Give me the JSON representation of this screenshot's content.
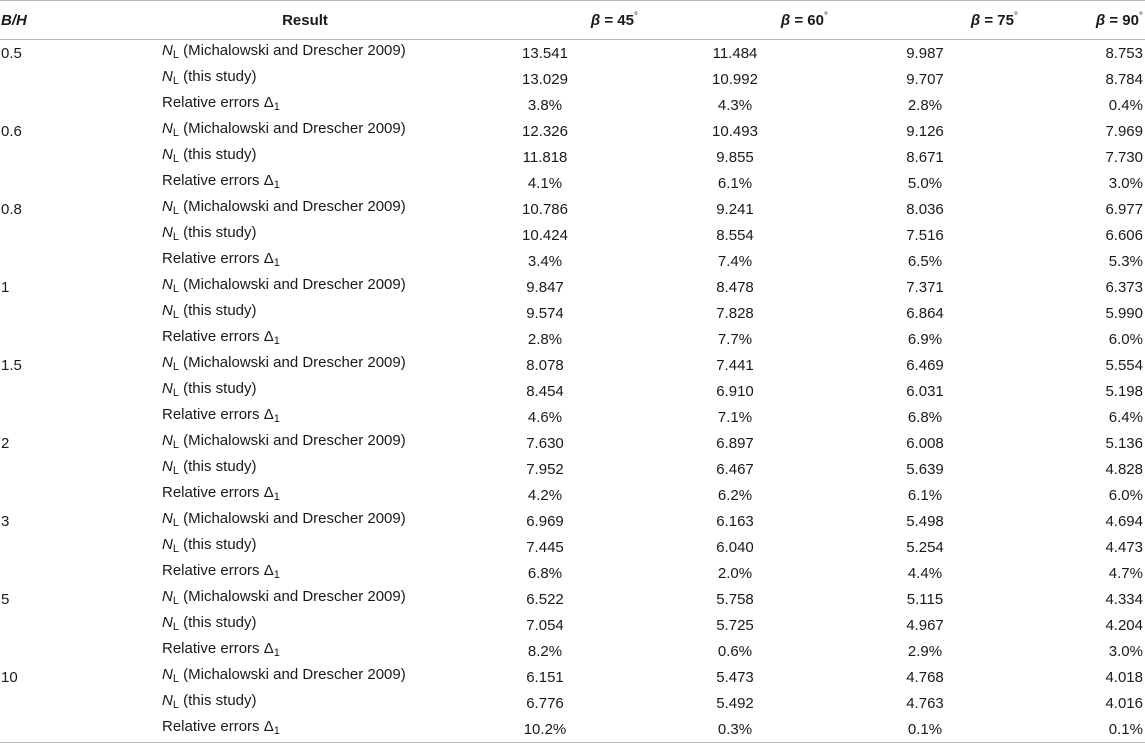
{
  "header": {
    "bh_label": "B/H",
    "result_label": "Result",
    "beta_symbol": "β",
    "beta_columns": [
      "= 45",
      "= 60",
      "= 75",
      "= 90"
    ],
    "degree": "°"
  },
  "labels": {
    "nl_symbol": "N",
    "nl_subscript": "L",
    "row_michalowski": "(Michalowski and Drescher 2009)",
    "row_this_study": "(this study)",
    "row_errors": "Relative errors Δ",
    "errors_subscript": "1"
  },
  "groups": [
    {
      "bh": "0.5",
      "michalowski": [
        "13.541",
        "11.484",
        "9.987",
        "8.753"
      ],
      "this_study": [
        "13.029",
        "10.992",
        "9.707",
        "8.784"
      ],
      "errors": [
        "3.8%",
        "4.3%",
        "2.8%",
        "0.4%"
      ]
    },
    {
      "bh": "0.6",
      "michalowski": [
        "12.326",
        "10.493",
        "9.126",
        "7.969"
      ],
      "this_study": [
        "11.818",
        "9.855",
        "8.671",
        "7.730"
      ],
      "errors": [
        "4.1%",
        "6.1%",
        "5.0%",
        "3.0%"
      ]
    },
    {
      "bh": "0.8",
      "michalowski": [
        "10.786",
        "9.241",
        "8.036",
        "6.977"
      ],
      "this_study": [
        "10.424",
        "8.554",
        "7.516",
        "6.606"
      ],
      "errors": [
        "3.4%",
        "7.4%",
        "6.5%",
        "5.3%"
      ]
    },
    {
      "bh": "1",
      "michalowski": [
        "9.847",
        "8.478",
        "7.371",
        "6.373"
      ],
      "this_study": [
        "9.574",
        "7.828",
        "6.864",
        "5.990"
      ],
      "errors": [
        "2.8%",
        "7.7%",
        "6.9%",
        "6.0%"
      ]
    },
    {
      "bh": "1.5",
      "michalowski": [
        "8.078",
        "7.441",
        "6.469",
        "5.554"
      ],
      "this_study": [
        "8.454",
        "6.910",
        "6.031",
        "5.198"
      ],
      "errors": [
        "4.6%",
        "7.1%",
        "6.8%",
        "6.4%"
      ]
    },
    {
      "bh": "2",
      "michalowski": [
        "7.630",
        "6.897",
        "6.008",
        "5.136"
      ],
      "this_study": [
        "7.952",
        "6.467",
        "5.639",
        "4.828"
      ],
      "errors": [
        "4.2%",
        "6.2%",
        "6.1%",
        "6.0%"
      ]
    },
    {
      "bh": "3",
      "michalowski": [
        "6.969",
        "6.163",
        "5.498",
        "4.694"
      ],
      "this_study": [
        "7.445",
        "6.040",
        "5.254",
        "4.473"
      ],
      "errors": [
        "6.8%",
        "2.0%",
        "4.4%",
        "4.7%"
      ]
    },
    {
      "bh": "5",
      "michalowski": [
        "6.522",
        "5.758",
        "5.115",
        "4.334"
      ],
      "this_study": [
        "7.054",
        "5.725",
        "4.967",
        "4.204"
      ],
      "errors": [
        "8.2%",
        "0.6%",
        "2.9%",
        "3.0%"
      ]
    },
    {
      "bh": "10",
      "michalowski": [
        "6.151",
        "5.473",
        "4.768",
        "4.018"
      ],
      "this_study": [
        "6.776",
        "5.492",
        "4.763",
        "4.016"
      ],
      "errors": [
        "10.2%",
        "0.3%",
        "0.1%",
        "0.1%"
      ]
    }
  ]
}
